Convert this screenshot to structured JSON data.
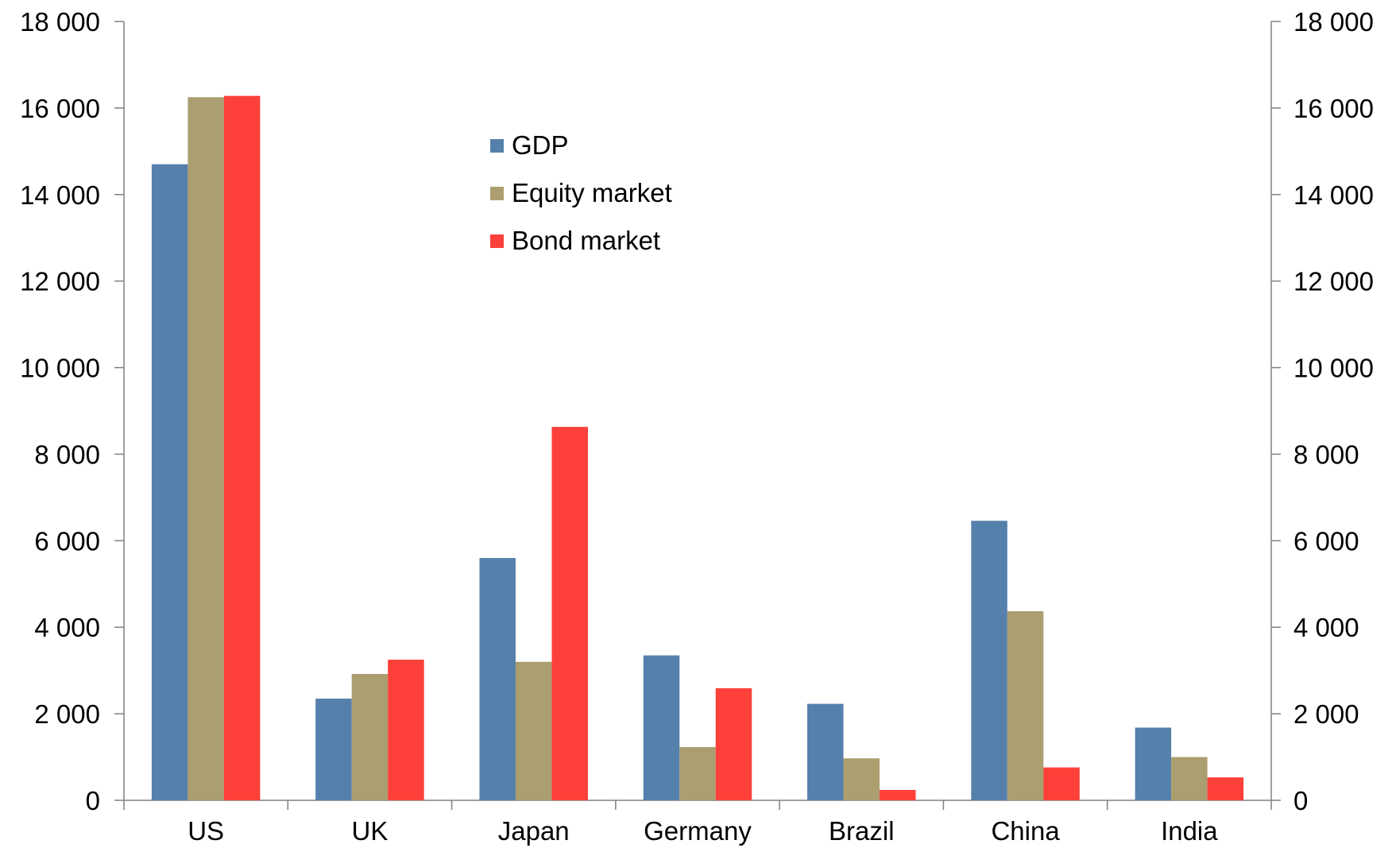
{
  "chart_data": {
    "type": "bar",
    "categories": [
      "US",
      "UK",
      "Japan",
      "Germany",
      "Brazil",
      "China",
      "India"
    ],
    "series": [
      {
        "name": "GDP",
        "values": [
          14700,
          2350,
          5600,
          3350,
          2230,
          6460,
          1680
        ],
        "color": "#5680AC"
      },
      {
        "name": "Equity market",
        "values": [
          16250,
          2920,
          3200,
          1230,
          970,
          4370,
          1000
        ],
        "color": "#AB9E6F"
      },
      {
        "name": "Bond market",
        "values": [
          16280,
          3250,
          8630,
          2590,
          240,
          760,
          530
        ],
        "color": "#FD403A"
      }
    ],
    "ylim": [
      0,
      18000
    ],
    "y_ticks": [
      0,
      2000,
      4000,
      6000,
      8000,
      10000,
      12000,
      14000,
      16000,
      18000
    ],
    "y_tick_labels": [
      "0",
      "2 000",
      "4 000",
      "6 000",
      "8 000",
      "10 000",
      "12 000",
      "14 000",
      "16 000",
      "18 000"
    ],
    "secondary_y_axis": true,
    "grid": false,
    "legend_position": "top-center"
  }
}
